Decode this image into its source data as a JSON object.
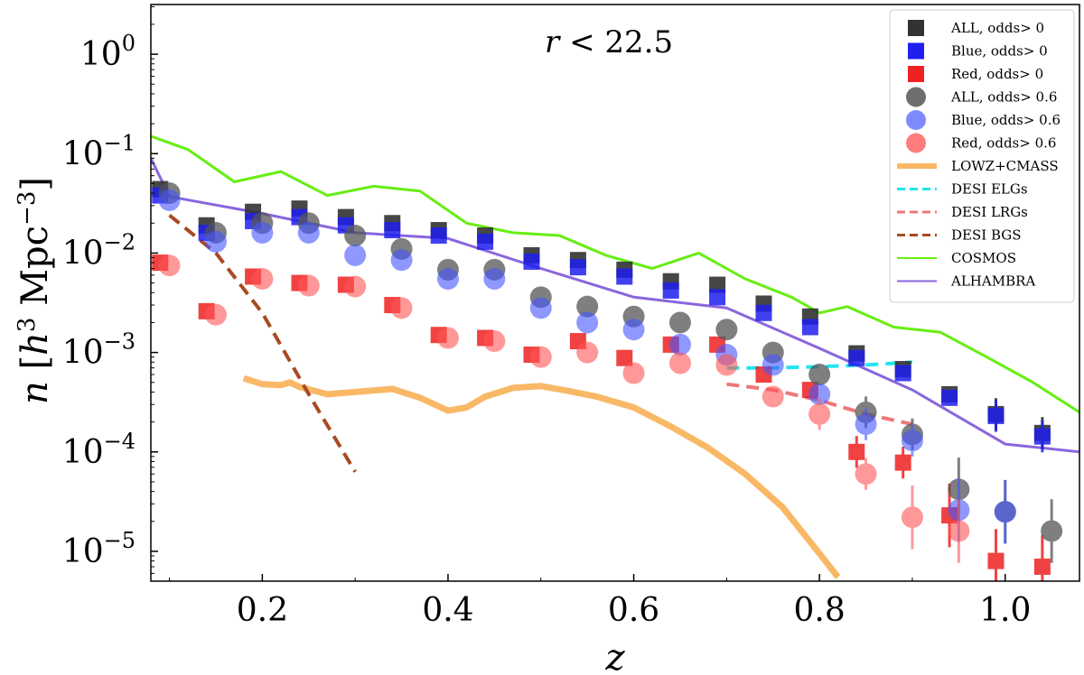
{
  "chart_data": {
    "type": "scatter",
    "title": "",
    "annotation": "r < 22.5",
    "annotation_var": "r",
    "annotation_rest": " < 22.5",
    "xlabel": "z",
    "ylabel": "n [h³ Mpc⁻³]",
    "ylabel_parts": {
      "n": "n",
      "open": " [",
      "h": "h",
      "h_exp": "3",
      "mpc": " Mpc",
      "mpc_exp": "−3",
      "close": "]"
    },
    "xlim": [
      0.08,
      1.08
    ],
    "ylim_log10": [
      -5.3,
      0.5
    ],
    "y_scale": "log",
    "x_ticks": [
      0.2,
      0.4,
      0.6,
      0.8,
      1.0
    ],
    "x_tick_labels": [
      "0.2",
      "0.4",
      "0.6",
      "0.8",
      "1.0"
    ],
    "y_ticks_exp": [
      0,
      -1,
      -2,
      -3,
      -4,
      -5
    ],
    "y_tick_labels": [
      "0",
      "−1",
      "−2",
      "−3",
      "−4",
      "−5"
    ],
    "y_tick_base": "10",
    "legend_position": "top-right",
    "point_series": [
      {
        "name": "ALL, odds> 0",
        "marker": "square",
        "color": "#333333",
        "alpha": 0.9,
        "dx": 0,
        "points": [
          [
            0.09,
            0.044
          ],
          [
            0.14,
            0.019
          ],
          [
            0.19,
            0.026
          ],
          [
            0.24,
            0.028
          ],
          [
            0.29,
            0.023
          ],
          [
            0.34,
            0.02
          ],
          [
            0.39,
            0.017
          ],
          [
            0.44,
            0.015
          ],
          [
            0.49,
            0.0095
          ],
          [
            0.54,
            0.0085
          ],
          [
            0.59,
            0.0068
          ],
          [
            0.64,
            0.0052
          ],
          [
            0.69,
            0.0048
          ],
          [
            0.74,
            0.0031
          ],
          [
            0.79,
            0.0023
          ],
          [
            0.84,
            0.00098
          ],
          [
            0.89,
            0.00068
          ],
          [
            0.94,
            0.00038
          ],
          [
            0.99,
            0.00024
          ],
          [
            1.04,
            0.000155
          ]
        ]
      },
      {
        "name": "Blue, odds> 0",
        "marker": "square",
        "color": "#1f1fee",
        "alpha": 0.85,
        "dx": 0,
        "points": [
          [
            0.09,
            0.038
          ],
          [
            0.14,
            0.016
          ],
          [
            0.19,
            0.021
          ],
          [
            0.24,
            0.023
          ],
          [
            0.29,
            0.019
          ],
          [
            0.34,
            0.017
          ],
          [
            0.39,
            0.015
          ],
          [
            0.44,
            0.013
          ],
          [
            0.49,
            0.0082
          ],
          [
            0.54,
            0.0072
          ],
          [
            0.59,
            0.0058
          ],
          [
            0.64,
            0.0042
          ],
          [
            0.69,
            0.0036
          ],
          [
            0.74,
            0.0025
          ],
          [
            0.79,
            0.0018
          ],
          [
            0.84,
            0.00088
          ],
          [
            0.89,
            0.00062
          ],
          [
            0.94,
            0.00035
          ],
          [
            0.99,
            0.00023
          ],
          [
            1.04,
            0.000143
          ]
        ]
      },
      {
        "name": "Red, odds> 0",
        "marker": "square",
        "color": "#ee2222",
        "alpha": 0.85,
        "dx": 0,
        "points": [
          [
            0.09,
            0.008
          ],
          [
            0.14,
            0.0026
          ],
          [
            0.19,
            0.0058
          ],
          [
            0.24,
            0.005
          ],
          [
            0.29,
            0.0048
          ],
          [
            0.34,
            0.003
          ],
          [
            0.39,
            0.0015
          ],
          [
            0.44,
            0.0014
          ],
          [
            0.49,
            0.00095
          ],
          [
            0.54,
            0.0013
          ],
          [
            0.59,
            0.00088
          ],
          [
            0.64,
            0.0012
          ],
          [
            0.69,
            0.0012
          ],
          [
            0.74,
            0.0006
          ],
          [
            0.79,
            0.00042
          ],
          [
            0.84,
            0.0001
          ],
          [
            0.89,
            7.8e-05
          ],
          [
            0.94,
            2.3e-05
          ],
          [
            0.99,
            8e-06
          ],
          [
            1.04,
            7e-06
          ]
        ]
      },
      {
        "name": "ALL, odds> 0.6",
        "marker": "circle",
        "color": "#555555",
        "alpha": 0.75,
        "dx": 0.01,
        "points": [
          [
            0.1,
            0.04
          ],
          [
            0.15,
            0.016
          ],
          [
            0.2,
            0.02
          ],
          [
            0.25,
            0.02
          ],
          [
            0.3,
            0.015
          ],
          [
            0.35,
            0.011
          ],
          [
            0.4,
            0.0068
          ],
          [
            0.45,
            0.0068
          ],
          [
            0.5,
            0.0036
          ],
          [
            0.55,
            0.0029
          ],
          [
            0.6,
            0.0023
          ],
          [
            0.65,
            0.002
          ],
          [
            0.7,
            0.0017
          ],
          [
            0.75,
            0.001
          ],
          [
            0.8,
            0.0006
          ],
          [
            0.85,
            0.00025
          ],
          [
            0.9,
            0.00015
          ],
          [
            0.95,
            4.2e-05
          ],
          [
            1.0,
            2.5e-05
          ],
          [
            1.05,
            1.6e-05
          ]
        ]
      },
      {
        "name": "Blue, odds> 0.6",
        "marker": "circle",
        "color": "#4455ff",
        "alpha": 0.6,
        "dx": 0.01,
        "points": [
          [
            0.1,
            0.034
          ],
          [
            0.15,
            0.013
          ],
          [
            0.2,
            0.016
          ],
          [
            0.25,
            0.016
          ],
          [
            0.3,
            0.0095
          ],
          [
            0.35,
            0.0085
          ],
          [
            0.4,
            0.0055
          ],
          [
            0.45,
            0.0055
          ],
          [
            0.5,
            0.0028
          ],
          [
            0.55,
            0.002
          ],
          [
            0.6,
            0.0017
          ],
          [
            0.65,
            0.0012
          ],
          [
            0.7,
            0.00095
          ],
          [
            0.75,
            0.00075
          ],
          [
            0.8,
            0.00038
          ],
          [
            0.85,
            0.00019
          ],
          [
            0.9,
            0.00013
          ],
          [
            0.95,
            2.6e-05
          ],
          [
            1.0,
            2.5e-05
          ]
        ]
      },
      {
        "name": "Red, odds> 0.6",
        "marker": "circle",
        "color": "#ff5555",
        "alpha": 0.6,
        "dx": 0.01,
        "points": [
          [
            0.1,
            0.0075
          ],
          [
            0.15,
            0.0024
          ],
          [
            0.2,
            0.0055
          ],
          [
            0.25,
            0.0047
          ],
          [
            0.3,
            0.0046
          ],
          [
            0.35,
            0.0028
          ],
          [
            0.4,
            0.0014
          ],
          [
            0.45,
            0.0013
          ],
          [
            0.5,
            0.0009
          ],
          [
            0.55,
            0.001
          ],
          [
            0.6,
            0.00062
          ],
          [
            0.65,
            0.00078
          ],
          [
            0.7,
            0.00075
          ],
          [
            0.75,
            0.00036
          ],
          [
            0.8,
            0.00024
          ],
          [
            0.85,
            6e-05
          ],
          [
            0.9,
            2.2e-05
          ],
          [
            0.95,
            1.6e-05
          ]
        ]
      }
    ],
    "line_series": [
      {
        "name": "LOWZ+CMASS",
        "color": "#f9b866",
        "width": 7,
        "dash": "none",
        "points": [
          [
            0.18,
            0.00055
          ],
          [
            0.2,
            0.00048
          ],
          [
            0.22,
            0.00047
          ],
          [
            0.23,
            0.0005
          ],
          [
            0.24,
            0.00045
          ],
          [
            0.27,
            0.00038
          ],
          [
            0.3,
            0.0004
          ],
          [
            0.34,
            0.00043
          ],
          [
            0.37,
            0.00035
          ],
          [
            0.4,
            0.00026
          ],
          [
            0.42,
            0.00028
          ],
          [
            0.44,
            0.00036
          ],
          [
            0.47,
            0.00044
          ],
          [
            0.5,
            0.00046
          ],
          [
            0.53,
            0.00041
          ],
          [
            0.56,
            0.00036
          ],
          [
            0.6,
            0.00028
          ],
          [
            0.64,
            0.00018
          ],
          [
            0.68,
            0.00011
          ],
          [
            0.72,
            6e-05
          ],
          [
            0.76,
            2.8e-05
          ],
          [
            0.8,
            9.5e-06
          ],
          [
            0.82,
            5.5e-06
          ]
        ]
      },
      {
        "name": "DESI ELGs",
        "color": "#22e5ee",
        "width": 4,
        "dash": "14,8",
        "points": [
          [
            0.7,
            0.0007
          ],
          [
            0.75,
            0.0007
          ],
          [
            0.8,
            0.00072
          ],
          [
            0.85,
            0.00075
          ],
          [
            0.9,
            0.0008
          ]
        ]
      },
      {
        "name": "DESI LRGs",
        "color": "#ee7777",
        "width": 4,
        "dash": "14,8",
        "points": [
          [
            0.7,
            0.00048
          ],
          [
            0.75,
            0.00042
          ],
          [
            0.8,
            0.00033
          ],
          [
            0.85,
            0.00024
          ],
          [
            0.9,
            0.00019
          ]
        ]
      },
      {
        "name": "DESI BGS",
        "color": "#a84a22",
        "width": 4,
        "dash": "14,8",
        "points": [
          [
            0.1,
            0.024
          ],
          [
            0.15,
            0.01
          ],
          [
            0.2,
            0.0025
          ],
          [
            0.25,
            0.00038
          ],
          [
            0.3,
            6.3e-05
          ]
        ]
      },
      {
        "name": "COSMOS",
        "color": "#66ee11",
        "width": 3,
        "dash": "none",
        "points": [
          [
            0.08,
            0.15
          ],
          [
            0.12,
            0.11
          ],
          [
            0.17,
            0.052
          ],
          [
            0.22,
            0.066
          ],
          [
            0.27,
            0.038
          ],
          [
            0.32,
            0.047
          ],
          [
            0.37,
            0.042
          ],
          [
            0.42,
            0.02
          ],
          [
            0.47,
            0.016
          ],
          [
            0.52,
            0.015
          ],
          [
            0.57,
            0.0095
          ],
          [
            0.62,
            0.007
          ],
          [
            0.67,
            0.01
          ],
          [
            0.72,
            0.0055
          ],
          [
            0.77,
            0.0036
          ],
          [
            0.8,
            0.0025
          ],
          [
            0.83,
            0.0029
          ],
          [
            0.88,
            0.0018
          ],
          [
            0.93,
            0.0016
          ],
          [
            0.98,
            0.0009
          ],
          [
            1.03,
            0.0005
          ],
          [
            1.08,
            0.00025
          ]
        ]
      },
      {
        "name": "ALHAMBRA",
        "color": "#8a66dd",
        "width": 3,
        "dash": "none",
        "points": [
          [
            0.08,
            0.09
          ],
          [
            0.1,
            0.037
          ],
          [
            0.2,
            0.025
          ],
          [
            0.3,
            0.016
          ],
          [
            0.4,
            0.014
          ],
          [
            0.5,
            0.007
          ],
          [
            0.6,
            0.0036
          ],
          [
            0.7,
            0.0028
          ],
          [
            0.8,
            0.0011
          ],
          [
            0.9,
            0.00042
          ],
          [
            1.0,
            0.00012
          ],
          [
            1.08,
            0.0001
          ]
        ]
      }
    ],
    "legend": [
      {
        "label": "ALL, odds> 0",
        "type": "square",
        "color": "#333333"
      },
      {
        "label": "Blue, odds> 0",
        "type": "square",
        "color": "#1f1fee"
      },
      {
        "label": "Red, odds> 0",
        "type": "square",
        "color": "#ee2222"
      },
      {
        "label": "ALL, odds> 0.6",
        "type": "circle",
        "color": "#555555"
      },
      {
        "label": "Blue, odds> 0.6",
        "type": "circle",
        "color": "#6677ff"
      },
      {
        "label": "Red, odds> 0.6",
        "type": "circle",
        "color": "#ff6666"
      },
      {
        "label": "LOWZ+CMASS",
        "type": "line",
        "color": "#f9b866",
        "width": 6,
        "dash": "none"
      },
      {
        "label": "DESI ELGs",
        "type": "line",
        "color": "#22e5ee",
        "width": 3,
        "dash": "9,5"
      },
      {
        "label": "DESI LRGs",
        "type": "line",
        "color": "#ee7777",
        "width": 3,
        "dash": "9,5"
      },
      {
        "label": "DESI BGS",
        "type": "line",
        "color": "#a84a22",
        "width": 3,
        "dash": "9,5"
      },
      {
        "label": "COSMOS",
        "type": "line",
        "color": "#66ee11",
        "width": 2,
        "dash": "none"
      },
      {
        "label": "ALHAMBRA",
        "type": "line",
        "color": "#8a66dd",
        "width": 2,
        "dash": "none"
      }
    ]
  }
}
